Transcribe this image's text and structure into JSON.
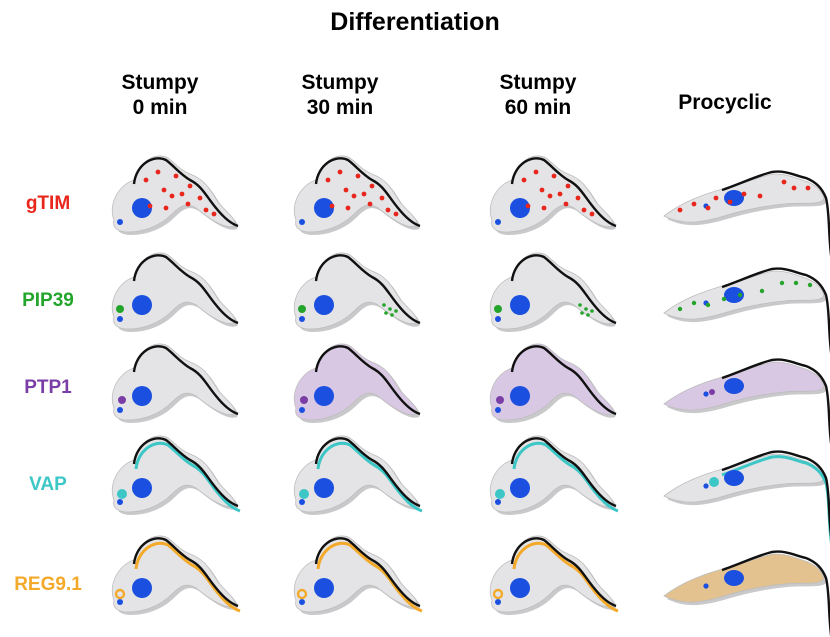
{
  "title": "Differentiation",
  "columns": [
    {
      "line1": "Stumpy",
      "line2": "0 min"
    },
    {
      "line1": "Stumpy",
      "line2": "30 min"
    },
    {
      "line1": "Stumpy",
      "line2": "60 min"
    },
    {
      "line1": "Procyclic",
      "line2": ""
    }
  ],
  "rows": [
    {
      "label": "gTIM",
      "color": "#e8261c",
      "pattern": "dots"
    },
    {
      "label": "PIP39",
      "color": "#22a52a",
      "pattern": "dots-timed"
    },
    {
      "label": "PTP1",
      "color": "#7a3fa6",
      "pattern": "cytoplasm"
    },
    {
      "label": "VAP",
      "color": "#3cc6c6",
      "pattern": "membrane-line"
    },
    {
      "label": "REG9.1",
      "color": "#f3a92a",
      "pattern": "membrane-line-cytoplasm"
    }
  ],
  "colors": {
    "cell_fill": "#e4e4e6",
    "outline": "#111111",
    "nucleus": "#1a4fe0",
    "ptp1_tint": "#d9c8e3",
    "reg_tint": "#e3c28f"
  }
}
